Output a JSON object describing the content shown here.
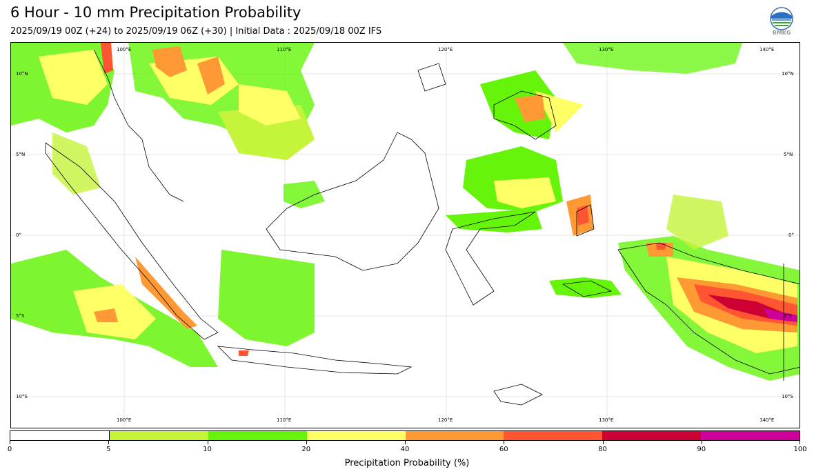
{
  "title": "6 Hour - 10 mm Precipitation Probability",
  "subtitle": "2025/09/19 00Z (+24) to 2025/09/19 06Z (+30) | Initial Data : 2025/09/18 00Z IFS",
  "logo": {
    "text": "BMKG",
    "icon": "bmkg-logo-icon"
  },
  "map": {
    "lon_top": [
      "100°E",
      "110°E",
      "120°E",
      "130°E",
      "140°E"
    ],
    "lon_bottom": [
      "100°E",
      "110°E",
      "120°E",
      "130°E",
      "140°E"
    ],
    "lat_left": [
      "10°N",
      "5°N",
      "0°",
      "5°S",
      "10°S"
    ],
    "lat_right": [
      "10°N",
      "5°N",
      "0°",
      "5°S",
      "10°S"
    ]
  },
  "colorbar": {
    "title": "Precipitation Probability (%)",
    "ticks": [
      "0",
      "5",
      "10",
      "20",
      "40",
      "60",
      "80",
      "90",
      "100"
    ],
    "colors": [
      "#ffffff",
      "#c4f53a",
      "#66f50a",
      "#ffff66",
      "#ff9933",
      "#ff5533",
      "#cc0033",
      "#cc0099"
    ]
  }
}
